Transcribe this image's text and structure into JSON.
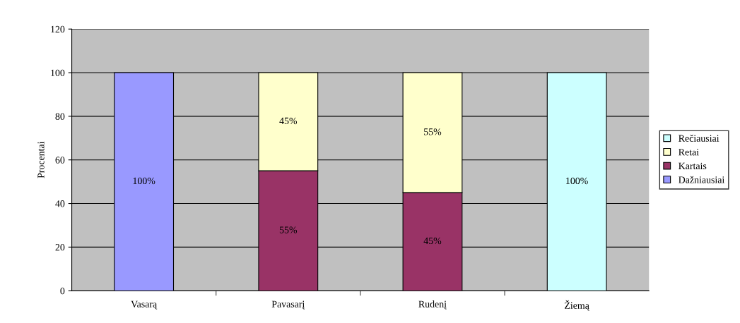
{
  "chart_data": {
    "type": "bar",
    "stacked": true,
    "ylabel": "Procentai",
    "categories": [
      "Vasarą",
      "Pavasarį",
      "Rudenį",
      "Žiemą"
    ],
    "series": [
      {
        "name": "Dažniausiai",
        "color": "#9999ff",
        "values": [
          100,
          null,
          null,
          null
        ],
        "value_labels": [
          "100%",
          null,
          null,
          null
        ]
      },
      {
        "name": "Kartais",
        "color": "#993366",
        "values": [
          null,
          55,
          45,
          null
        ],
        "value_labels": [
          null,
          "55%",
          "45%",
          null
        ]
      },
      {
        "name": "Retai",
        "color": "#ffffcc",
        "values": [
          null,
          45,
          55,
          null
        ],
        "value_labels": [
          null,
          "45%",
          "55%",
          null
        ]
      },
      {
        "name": "Rečiausiai",
        "color": "#ccffff",
        "values": [
          null,
          null,
          null,
          100
        ],
        "value_labels": [
          null,
          null,
          null,
          "100%"
        ]
      }
    ],
    "ylim": [
      0,
      120
    ],
    "yticks": [
      0,
      20,
      40,
      60,
      80,
      100,
      120
    ],
    "grid": "y",
    "legend": "right"
  }
}
